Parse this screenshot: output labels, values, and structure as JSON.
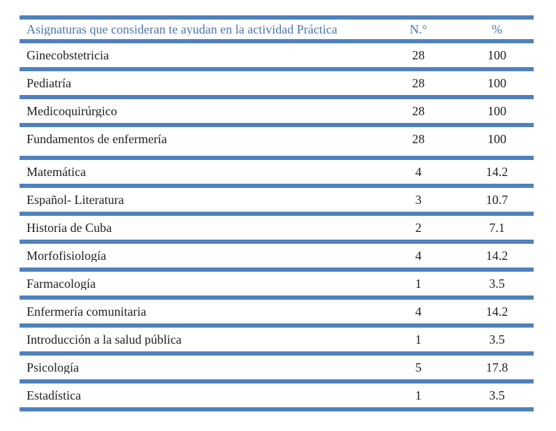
{
  "table": {
    "headers": {
      "subject": "Asignaturas que consideran te ayudan en la actividad Práctica",
      "n": "N.°",
      "pct": "%"
    },
    "rows": [
      {
        "subject": "Ginecobstetricia",
        "n": "28",
        "pct": "100",
        "group_end": false
      },
      {
        "subject": "Pediatría",
        "n": "28",
        "pct": "100",
        "group_end": false
      },
      {
        "subject": "Medicoquirúrgico",
        "n": "28",
        "pct": "100",
        "group_end": false
      },
      {
        "subject": "Fundamentos de enfermería",
        "n": "28",
        "pct": "100",
        "group_end": true
      },
      {
        "subject": "Matemática",
        "n": "4",
        "pct": "14.2",
        "group_end": false
      },
      {
        "subject": "Español- Literatura",
        "n": "3",
        "pct": "10.7",
        "group_end": false
      },
      {
        "subject": "Historia de Cuba",
        "n": "2",
        "pct": "7.1",
        "group_end": false
      },
      {
        "subject": "Morfofisiología",
        "n": "4",
        "pct": "14.2",
        "group_end": false
      },
      {
        "subject": "Farmacología",
        "n": "1",
        "pct": "3.5",
        "group_end": false
      },
      {
        "subject": "Enfermería comunitaria",
        "n": "4",
        "pct": "14.2",
        "group_end": false
      },
      {
        "subject": "Introducción a la salud pública",
        "n": "1",
        "pct": "3.5",
        "group_end": false
      },
      {
        "subject": "Psicología",
        "n": "5",
        "pct": "17.8",
        "group_end": false
      },
      {
        "subject": "Estadística",
        "n": "1",
        "pct": "3.5",
        "group_end": false
      }
    ]
  },
  "colors": {
    "bar": "#4F81BD",
    "header_text": "#4A74AD",
    "body_text": "#1E1E1E",
    "page_bg": "#FFFFFF"
  }
}
